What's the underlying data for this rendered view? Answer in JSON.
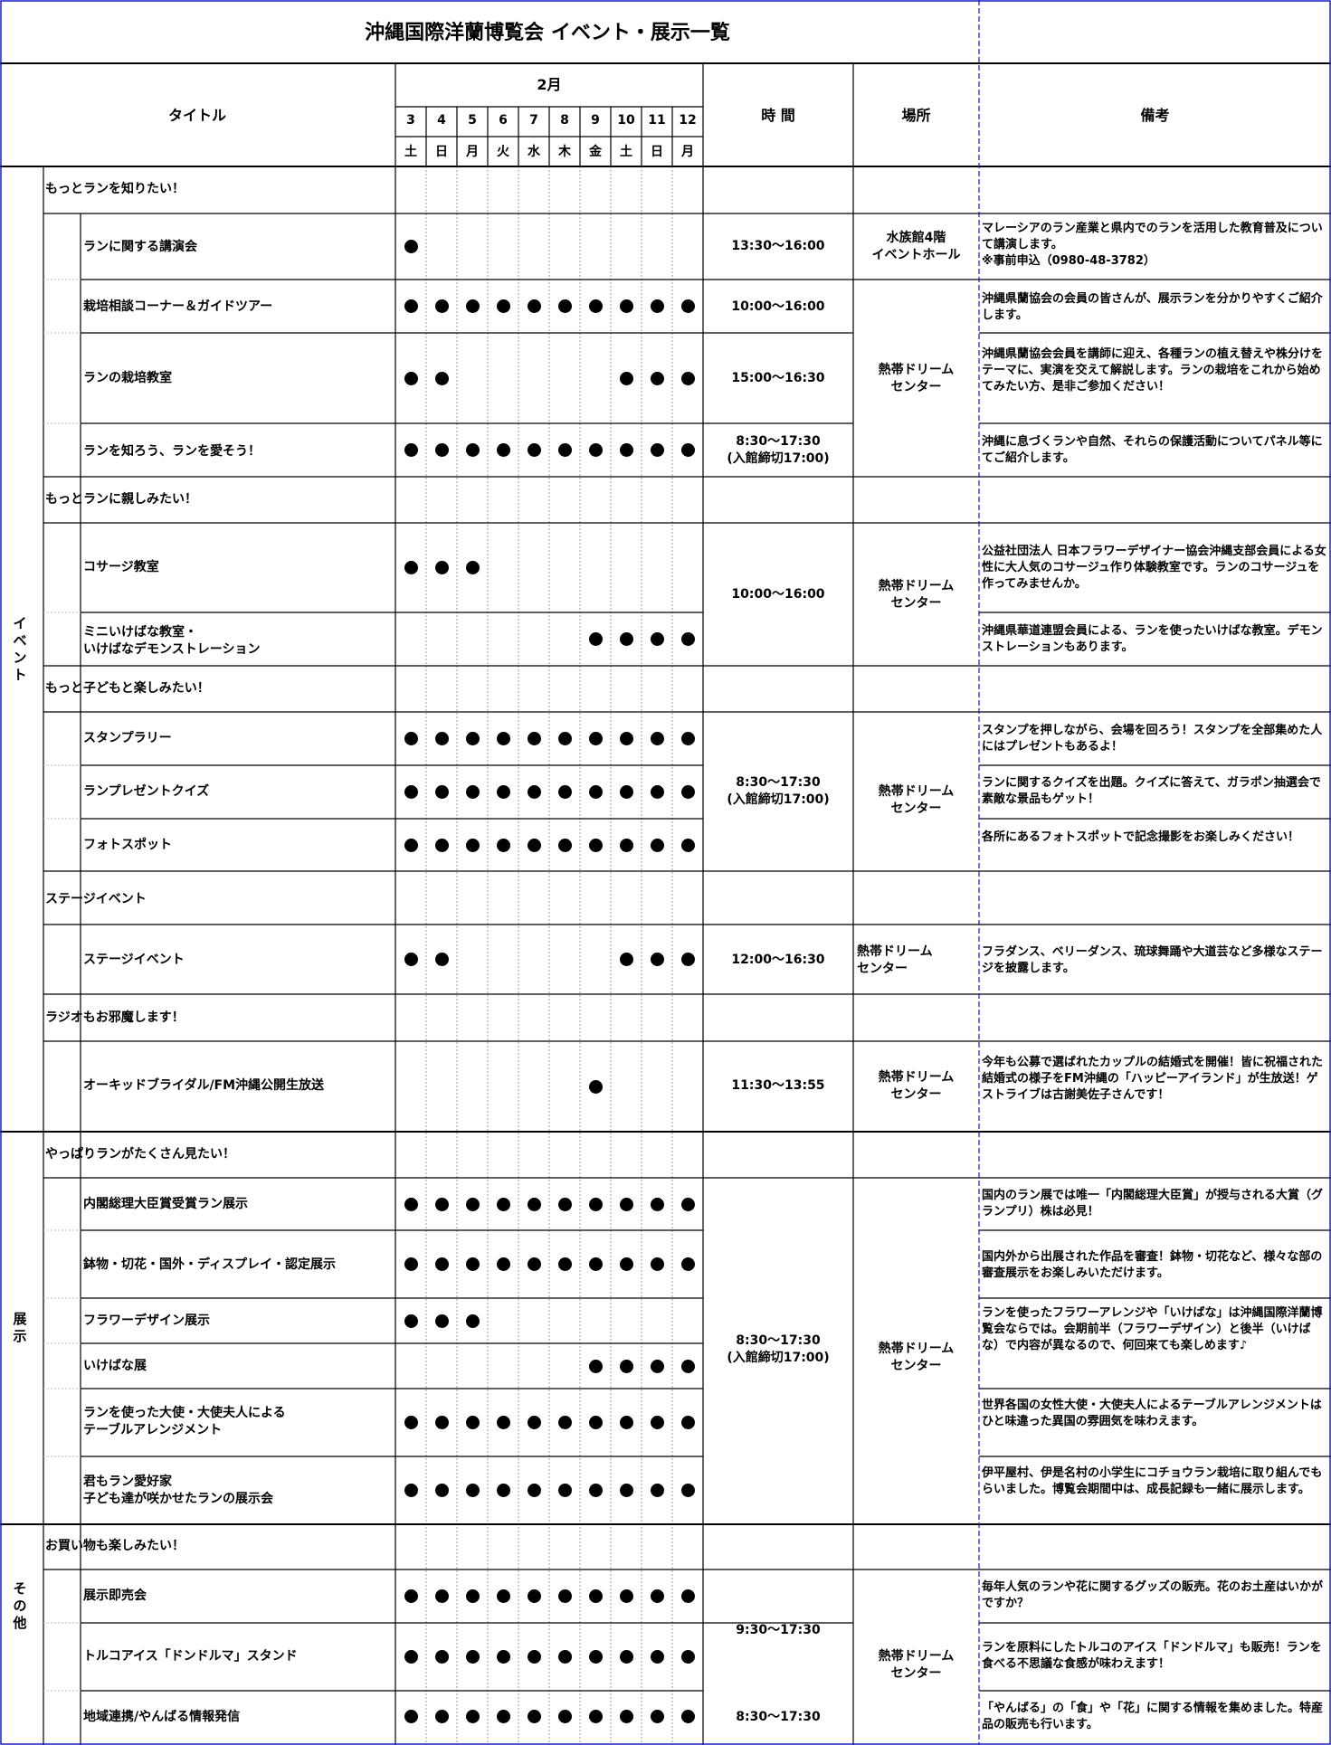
{
  "title": "沖縄国際洋蘭博覧会 イベント・展示一覧",
  "header": {
    "title_col": "タイトル",
    "month": "2月",
    "days": [
      "3",
      "4",
      "5",
      "6",
      "7",
      "8",
      "9",
      "10",
      "11",
      "12"
    ],
    "weekdays": [
      "土",
      "日",
      "月",
      "火",
      "水",
      "木",
      "金",
      "土",
      "日",
      "月"
    ],
    "time_col": "時 間",
    "place_col": "場所",
    "note_col": "備考"
  },
  "sections": {
    "event": "イベント",
    "exhibit": "展示",
    "other": "その他"
  },
  "groups": [
    "もっとランを知りたい！",
    "もっとランに親しみたい！",
    "もっと子どもと楽しみたい！",
    "ステージイベント",
    "ラジオもお邪魔します！",
    "やっぱりランがたくさん見たい！",
    "お買い物も楽しみたい！"
  ],
  "events": [
    {
      "title": "ランに関する講演会",
      "days": [
        1,
        0,
        0,
        0,
        0,
        0,
        0,
        0,
        0,
        0
      ]
    },
    {
      "title": "栽培相談コーナー＆ガイドツアー",
      "days": [
        1,
        1,
        1,
        1,
        1,
        1,
        1,
        1,
        1,
        1
      ]
    },
    {
      "title": "ランの栽培教室",
      "days": [
        1,
        1,
        0,
        0,
        0,
        0,
        0,
        1,
        1,
        1
      ]
    },
    {
      "title": "ランを知ろう、ランを愛そう！",
      "days": [
        1,
        1,
        1,
        1,
        1,
        1,
        1,
        1,
        1,
        1
      ]
    },
    {
      "title": "コサージ教室",
      "days": [
        1,
        1,
        1,
        0,
        0,
        0,
        0,
        0,
        0,
        0
      ]
    },
    {
      "title": "ミニいけばな教室・\nいけばなデモンストレーション",
      "days": [
        0,
        0,
        0,
        0,
        0,
        0,
        1,
        1,
        1,
        1
      ]
    },
    {
      "title": "スタンプラリー",
      "days": [
        1,
        1,
        1,
        1,
        1,
        1,
        1,
        1,
        1,
        1
      ]
    },
    {
      "title": "ランプレゼントクイズ",
      "days": [
        1,
        1,
        1,
        1,
        1,
        1,
        1,
        1,
        1,
        1
      ]
    },
    {
      "title": "フォトスポット",
      "days": [
        1,
        1,
        1,
        1,
        1,
        1,
        1,
        1,
        1,
        1
      ]
    },
    {
      "title": "ステージイベント",
      "days": [
        1,
        1,
        0,
        0,
        0,
        0,
        0,
        1,
        1,
        1
      ]
    },
    {
      "title": "オーキッドブライダル/FM沖縄公開生放送",
      "days": [
        0,
        0,
        0,
        0,
        0,
        0,
        1,
        0,
        0,
        0
      ]
    },
    {
      "title": "内閣総理大臣賞受賞ラン展示",
      "days": [
        1,
        1,
        1,
        1,
        1,
        1,
        1,
        1,
        1,
        1
      ]
    },
    {
      "title": "鉢物・切花・国外・ディスプレイ・認定展示",
      "days": [
        1,
        1,
        1,
        1,
        1,
        1,
        1,
        1,
        1,
        1
      ]
    },
    {
      "title": "フラワーデザイン展示",
      "days": [
        1,
        1,
        1,
        0,
        0,
        0,
        0,
        0,
        0,
        0
      ]
    },
    {
      "title": "いけばな展",
      "days": [
        0,
        0,
        0,
        0,
        0,
        0,
        1,
        1,
        1,
        1
      ]
    },
    {
      "title": "ランを使った大使・大使夫人による\nテーブルアレンジメント",
      "days": [
        1,
        1,
        1,
        1,
        1,
        1,
        1,
        1,
        1,
        1
      ]
    },
    {
      "title": "君もラン愛好家\n子ども達が咲かせたランの展示会",
      "days": [
        1,
        1,
        1,
        1,
        1,
        1,
        1,
        1,
        1,
        1
      ]
    },
    {
      "title": "展示即売会",
      "days": [
        1,
        1,
        1,
        1,
        1,
        1,
        1,
        1,
        1,
        1
      ]
    },
    {
      "title": "トルコアイス「ドンドルマ」スタンド",
      "days": [
        1,
        1,
        1,
        1,
        1,
        1,
        1,
        1,
        1,
        1
      ]
    },
    {
      "title": "地域連携/やんばる情報発信",
      "days": [
        1,
        1,
        1,
        1,
        1,
        1,
        1,
        1,
        1,
        1
      ]
    }
  ],
  "times": [
    "13:30～16:00",
    "10:00～16:00",
    "15:00～16:30",
    "8:30～17:30\n(入館締切17:00)",
    "10:00～16:00",
    "8:30～17:30\n(入館締切17:00)",
    "12:00～16:30",
    "11:30～13:55",
    "8:30～17:30\n(入館締切17:00)",
    "9:30～17:30",
    "8:30～17:30"
  ],
  "places": [
    "水族館4階\nイベントホール",
    "熱帯ドリーム\nセンター",
    "熱帯ドリーム\nセンター",
    "熱帯ドリーム\nセンター",
    "熱帯ドリーム\nセンター",
    "熱帯ドリーム\nセンター",
    "熱帯ドリーム\nセンター",
    "熱帯ドリーム\nセンター"
  ],
  "notes": [
    "マレーシアのラン産業と県内でのランを活用した教育普及について講演します。\n※事前申込（0980-48-3782）",
    "沖縄県蘭協会の会員の皆さんが、展示ランを分かりやすくご紹介します。",
    "沖縄県蘭協会会員を講師に迎え、各種ランの植え替えや株分けをテーマに、実演を交えて解説します。ランの栽培をこれから始めてみたい方、是非ご参加ください！",
    "沖縄に息づくランや自然、それらの保護活動についてパネル等にてご紹介します。",
    "公益社団法人 日本フラワーデザイナー協会沖縄支部会員による女性に大人気のコサージュ作り体験教室です。ランのコサージュを作ってみませんか。",
    "沖縄県華道連盟会員による、ランを使ったいけばな教室。デモンストレーションもあります。",
    "スタンプを押しながら、会場を回ろう！スタンプを全部集めた人にはプレゼントもあるよ！",
    "ランに関するクイズを出題。クイズに答えて、ガラポン抽選会で素敵な景品もゲット！",
    "各所にあるフォトスポットで記念撮影をお楽しみください！",
    "フラダンス、ベリーダンス、琉球舞踊や大道芸など多様なステージを披露します。",
    "今年も公募で選ばれたカップルの結婚式を開催！皆に祝福された結婚式の様子をFM沖縄の「ハッピーアイランド」が生放送！ゲストライブは古謝美佐子さんです！",
    "国内のラン展では唯一「内閣総理大臣賞」が授与される大賞（グランプリ）株は必見！",
    "国内外から出展された作品を審査！鉢物・切花など、様々な部の審査展示をお楽しみいただけます。",
    "ランを使ったフラワーアレンジや「いけばな」は沖縄国際洋蘭博覧会ならでは。会期前半（フラワーデザイン）と後半（いけばな）で内容が異なるので、何回来ても楽しめます♪",
    "世界各国の女性大使・大使夫人によるテーブルアレンジメントはひと味違った異国の雰囲気を味わえます。",
    "伊平屋村、伊是名村の小学生にコチョウラン栽培に取り組んでもらいました。博覧会期間中は、成長記録も一緒に展示します。",
    "毎年人気のランや花に関するグッズの販売。花のお土産はいかがですか？",
    "ランを原料にしたトルコのアイス「ドンドルマ」も販売！ランを食べる不思議な食感が味わえます！",
    "「やんばる」の「食」や「花」に関する情報を集めました。特産品の販売も行います。"
  ],
  "colors": {
    "page_border": "#1c1cc8",
    "grid": "#000000",
    "dotted": "#9a9a9a"
  }
}
